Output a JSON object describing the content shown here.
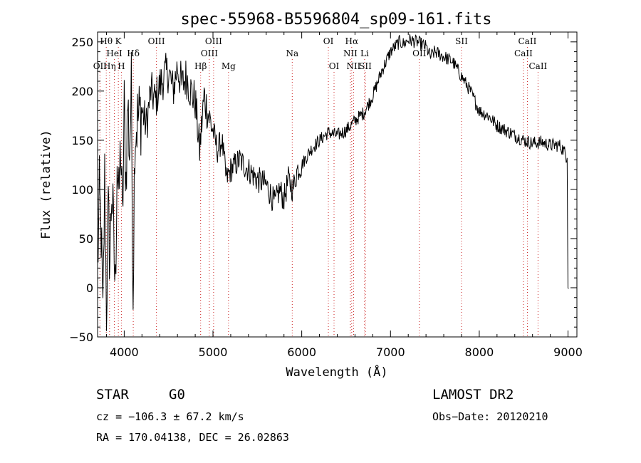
{
  "chart_data": {
    "type": "line",
    "title": "spec-55968-B5596804_sp09-161.fits",
    "xlabel": "Wavelength (Å)",
    "ylabel": "Flux (relative)",
    "xlim": [
      3700,
      9100
    ],
    "ylim": [
      -50,
      260
    ],
    "xticks": [
      4000,
      5000,
      6000,
      7000,
      8000,
      9000
    ],
    "yticks": [
      -50,
      0,
      50,
      100,
      150,
      200,
      250
    ],
    "series": [
      {
        "x": [
          3700,
          3720,
          3740,
          3760,
          3780,
          3800,
          3820,
          3840,
          3860,
          3880,
          3900,
          3920,
          3940,
          3960,
          3980,
          4000,
          4020,
          4040,
          4060,
          4080,
          4100,
          4120,
          4150,
          4200,
          4250,
          4300,
          4350,
          4400,
          4450,
          4500,
          4550,
          4600,
          4650,
          4700,
          4750,
          4800,
          4850,
          4900,
          4950,
          5000,
          5050,
          5100,
          5150,
          5200,
          5300,
          5400,
          5500,
          5600,
          5700,
          5750,
          5800,
          5850,
          5900,
          5950,
          6000,
          6100,
          6200,
          6300,
          6400,
          6500,
          6600,
          6700,
          6800,
          6900,
          7000,
          7050,
          7100,
          7150,
          7200,
          7300,
          7400,
          7450,
          7500,
          7600,
          7700,
          7800,
          7900,
          8000,
          8100,
          8200,
          8300,
          8400,
          8500,
          8600,
          8700,
          8800,
          8900,
          8950,
          8990,
          8995,
          9000,
          9005
        ],
        "y": [
          20,
          90,
          60,
          -40,
          110,
          -20,
          70,
          30,
          105,
          50,
          -5,
          140,
          80,
          150,
          60,
          180,
          110,
          190,
          140,
          200,
          0,
          160,
          170,
          180,
          165,
          200,
          190,
          205,
          215,
          220,
          200,
          225,
          205,
          215,
          200,
          190,
          140,
          195,
          175,
          160,
          140,
          150,
          110,
          120,
          130,
          120,
          110,
          105,
          85,
          100,
          90,
          110,
          100,
          120,
          125,
          140,
          150,
          158,
          155,
          160,
          170,
          178,
          195,
          220,
          240,
          245,
          250,
          248,
          252,
          250,
          245,
          235,
          240,
          235,
          230,
          215,
          200,
          180,
          175,
          165,
          160,
          155,
          150,
          147,
          148,
          145,
          145,
          140,
          132,
          60,
          0,
          -1
        ]
      }
    ]
  },
  "spectral_lines": [
    {
      "label": "Hθ",
      "wl": 3798,
      "row": 0
    },
    {
      "label": "K",
      "wl": 3934,
      "row": 0
    },
    {
      "label": "HeI",
      "wl": 3889,
      "row": 1
    },
    {
      "label": "Hδ",
      "wl": 4102,
      "row": 1
    },
    {
      "label": "OII",
      "wl": 3727,
      "row": 2
    },
    {
      "label": "Hη",
      "wl": 3835,
      "row": 2
    },
    {
      "label": "H",
      "wl": 3968,
      "row": 2
    },
    {
      "label": "OIII",
      "wl": 4363,
      "row": 0
    },
    {
      "label": "Hβ",
      "wl": 4861,
      "row": 2
    },
    {
      "label": "OIII",
      "wl": 5007,
      "row": 0
    },
    {
      "label": "OIII",
      "wl": 4959,
      "row": 1
    },
    {
      "label": "Mg",
      "wl": 5175,
      "row": 2
    },
    {
      "label": "Na",
      "wl": 5893,
      "row": 1
    },
    {
      "label": "OI",
      "wl": 6300,
      "row": 0
    },
    {
      "label": "OI",
      "wl": 6364,
      "row": 2
    },
    {
      "label": "Hα",
      "wl": 6563,
      "row": 0
    },
    {
      "label": "NII",
      "wl": 6548,
      "row": 1
    },
    {
      "label": "NII",
      "wl": 6584,
      "row": 2
    },
    {
      "label": "Li",
      "wl": 6708,
      "row": 1
    },
    {
      "label": "SII",
      "wl": 6717,
      "row": 2
    },
    {
      "label": "OII",
      "wl": 7325,
      "row": 1
    },
    {
      "label": "SII",
      "wl": 7800,
      "row": 0
    },
    {
      "label": "CaII",
      "wl": 8542,
      "row": 0
    },
    {
      "label": "CaII",
      "wl": 8498,
      "row": 1
    },
    {
      "label": "CaII",
      "wl": 8662,
      "row": 2
    }
  ],
  "info": {
    "object_class": "STAR",
    "subclass": "G0",
    "survey": "LAMOST DR2",
    "cz": "cz = −106.3 ± 67.2 km/s",
    "obs_date": "Obs−Date: 20120210",
    "coords": "RA = 170.04138, DEC =  26.02863"
  }
}
